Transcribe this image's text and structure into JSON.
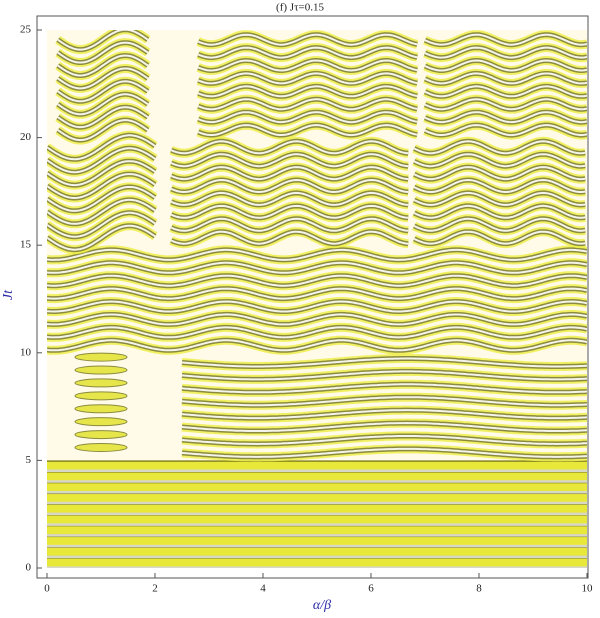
{
  "chart_data": {
    "type": "contour",
    "title": "(f) Jτ=0.15",
    "x_label": "α/β",
    "y_label": "Jt",
    "xlim": [
      0,
      10
    ],
    "ylim": [
      0,
      25
    ],
    "xticks": [
      0,
      2,
      4,
      6,
      8,
      10
    ],
    "yticks": [
      0,
      5,
      10,
      15,
      20,
      25
    ]
  }
}
